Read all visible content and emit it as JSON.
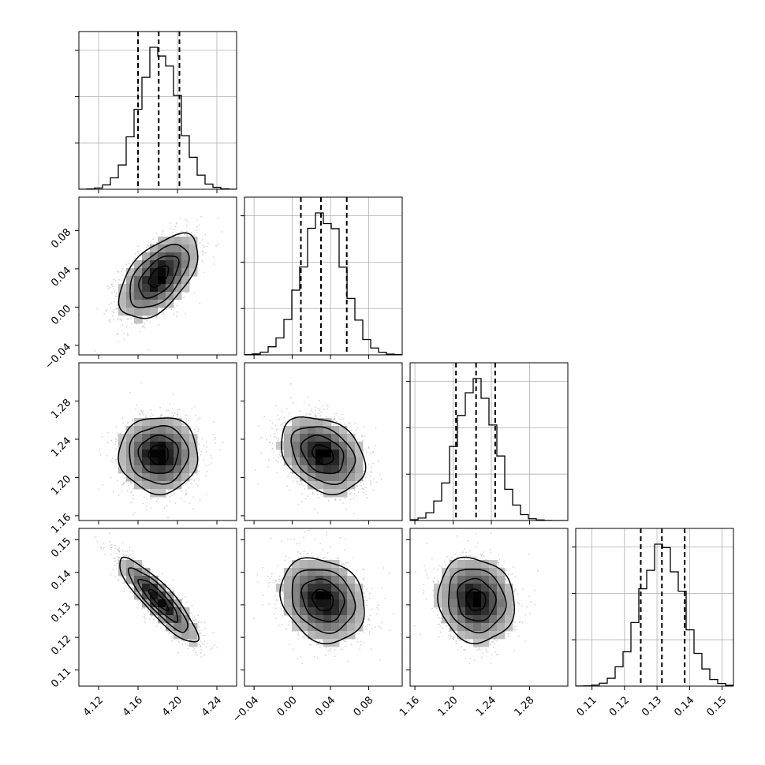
{
  "chart_data": {
    "type": "corner",
    "parameters": 4,
    "axes": [
      {
        "index": 0,
        "range": [
          4.1,
          4.26
        ],
        "ticks": [
          4.12,
          4.16,
          4.2,
          4.24
        ],
        "tick_labels": [
          "4.12",
          "4.16",
          "4.20",
          "4.24"
        ],
        "quantiles": [
          4.16,
          4.181,
          4.202
        ],
        "mean": 4.181,
        "sd": 0.02
      },
      {
        "index": 1,
        "range": [
          -0.05,
          0.115
        ],
        "ticks": [
          -0.04,
          0.0,
          0.04,
          0.08
        ],
        "tick_labels": [
          "−0.04",
          "0.00",
          "0.04",
          "0.08"
        ],
        "quantiles": [
          0.009,
          0.03,
          0.057
        ],
        "mean": 0.032,
        "sd": 0.022
      },
      {
        "index": 2,
        "range": [
          1.155,
          1.32
        ],
        "ticks": [
          1.16,
          1.2,
          1.24,
          1.28
        ],
        "tick_labels": [
          "1.16",
          "1.20",
          "1.24",
          "1.28"
        ],
        "quantiles": [
          1.203,
          1.224,
          1.244
        ],
        "mean": 1.224,
        "sd": 0.02
      },
      {
        "index": 3,
        "range": [
          0.105,
          0.1535
        ],
        "ticks": [
          0.11,
          0.12,
          0.13,
          0.14,
          0.15
        ],
        "tick_labels": [
          "0.11",
          "0.12",
          "0.13",
          "0.14",
          "0.15"
        ],
        "quantiles": [
          0.125,
          0.1315,
          0.1385
        ],
        "mean": 0.1315,
        "sd": 0.0065
      }
    ],
    "correlations": [
      {
        "pair": [
          0,
          1
        ],
        "rho": 0.55
      },
      {
        "pair": [
          0,
          2
        ],
        "rho": 0.0
      },
      {
        "pair": [
          1,
          2
        ],
        "rho": -0.3
      },
      {
        "pair": [
          0,
          3
        ],
        "rho": -0.88
      },
      {
        "pair": [
          1,
          3
        ],
        "rho": -0.2
      },
      {
        "pair": [
          2,
          3
        ],
        "rho": -0.1
      }
    ],
    "contour_levels_sigma": [
      0.5,
      1.0,
      1.5,
      2.0
    ],
    "histogram_y_ticks": 3,
    "grid": true,
    "colors": {
      "scatter": "#bdbdbd",
      "density_max": "#000000",
      "lines": "#000000",
      "grid": "#b0b0b0"
    }
  }
}
